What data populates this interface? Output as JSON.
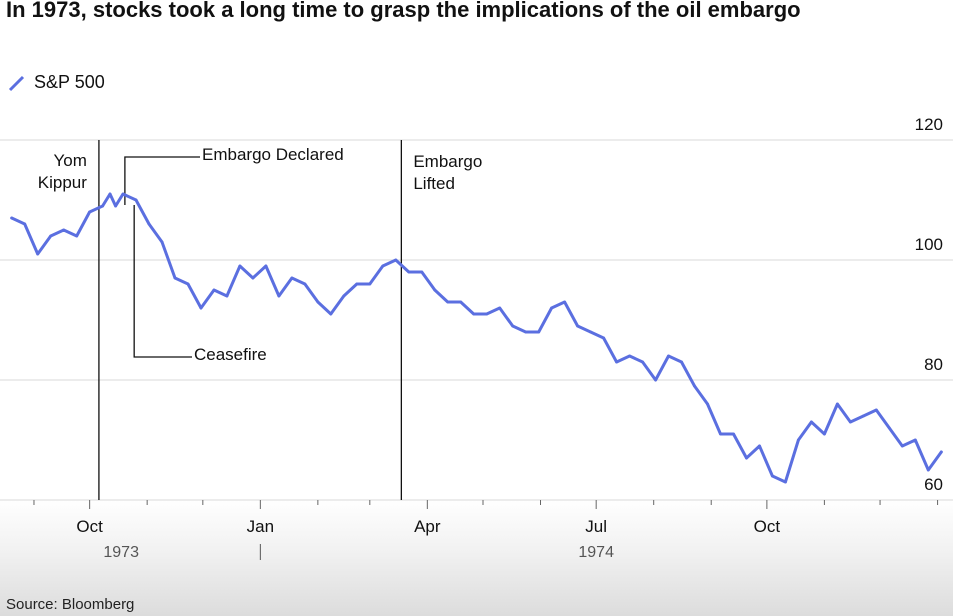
{
  "title": "In 1973, stocks took a long time to grasp the implications of the oil embargo",
  "source": "Source: Bloomberg",
  "colors": {
    "line": "#5b6fe0",
    "grid": "#d9d9d9",
    "event_line": "#111111"
  },
  "chart_data": {
    "type": "line",
    "title": "In 1973, stocks took a long time to grasp the implications of the oil embargo",
    "xlabel": "",
    "ylabel": "",
    "ylim": [
      60,
      120
    ],
    "yticks": [
      "120",
      "100",
      "80",
      "60"
    ],
    "xticks": [
      "Oct",
      "Jan",
      "Apr",
      "Jul",
      "Oct"
    ],
    "year_labels": [
      "1973",
      "1974"
    ],
    "legend": {
      "position": "top-left",
      "entries": [
        "S&P 500"
      ]
    },
    "grid": true,
    "series": [
      {
        "name": "S&P 500",
        "x": [
          "1973-08-20",
          "1973-08-27",
          "1973-09-03",
          "1973-09-10",
          "1973-09-17",
          "1973-09-24",
          "1973-10-01",
          "1973-10-08",
          "1973-10-12",
          "1973-10-15",
          "1973-10-19",
          "1973-10-26",
          "1973-11-02",
          "1973-11-09",
          "1973-11-16",
          "1973-11-23",
          "1973-11-30",
          "1973-12-07",
          "1973-12-14",
          "1973-12-21",
          "1973-12-28",
          "1974-01-04",
          "1974-01-11",
          "1974-01-18",
          "1974-01-25",
          "1974-02-01",
          "1974-02-08",
          "1974-02-15",
          "1974-02-22",
          "1974-03-01",
          "1974-03-08",
          "1974-03-15",
          "1974-03-22",
          "1974-03-29",
          "1974-04-05",
          "1974-04-12",
          "1974-04-19",
          "1974-04-26",
          "1974-05-03",
          "1974-05-10",
          "1974-05-17",
          "1974-05-24",
          "1974-05-31",
          "1974-06-07",
          "1974-06-14",
          "1974-06-21",
          "1974-06-28",
          "1974-07-05",
          "1974-07-12",
          "1974-07-19",
          "1974-07-26",
          "1974-08-02",
          "1974-08-09",
          "1974-08-16",
          "1974-08-23",
          "1974-08-30",
          "1974-09-06",
          "1974-09-13",
          "1974-09-20",
          "1974-09-27",
          "1974-10-04",
          "1974-10-11",
          "1974-10-18",
          "1974-10-25",
          "1974-11-01",
          "1974-11-08",
          "1974-11-15",
          "1974-11-22",
          "1974-11-29",
          "1974-12-06",
          "1974-12-13",
          "1974-12-20",
          "1974-12-27",
          "1975-01-03"
        ],
        "values": [
          107,
          106,
          101,
          104,
          105,
          104,
          108,
          109,
          111,
          109,
          111,
          110,
          106,
          103,
          97,
          96,
          92,
          95,
          94,
          99,
          97,
          99,
          94,
          97,
          96,
          93,
          91,
          94,
          96,
          96,
          99,
          100,
          98,
          98,
          95,
          93,
          93,
          91,
          91,
          92,
          89,
          88,
          88,
          92,
          93,
          89,
          88,
          87,
          83,
          84,
          83,
          80,
          84,
          83,
          79,
          76,
          71,
          71,
          67,
          69,
          64,
          63,
          70,
          73,
          71,
          76,
          73,
          74,
          75,
          72,
          69,
          70,
          65,
          68
        ]
      }
    ],
    "annotations": [
      {
        "label": "Yom Kippur",
        "date": "1973-10-06"
      },
      {
        "label": "Embargo Declared",
        "date": "1973-10-20"
      },
      {
        "label": "Ceasefire",
        "date": "1973-10-25"
      },
      {
        "label": "Embargo Lifted",
        "date": "1974-03-18"
      }
    ]
  }
}
